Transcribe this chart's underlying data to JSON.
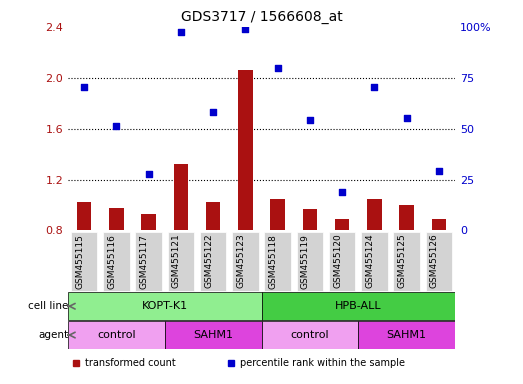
{
  "title": "GDS3717 / 1566608_at",
  "samples": [
    "GSM455115",
    "GSM455116",
    "GSM455117",
    "GSM455121",
    "GSM455122",
    "GSM455123",
    "GSM455118",
    "GSM455119",
    "GSM455120",
    "GSM455124",
    "GSM455125",
    "GSM455126"
  ],
  "bar_values": [
    1.02,
    0.98,
    0.93,
    1.32,
    1.02,
    2.06,
    1.05,
    0.97,
    0.89,
    1.05,
    1.0,
    0.89
  ],
  "scatter_values": [
    1.93,
    1.62,
    1.24,
    2.36,
    1.73,
    2.38,
    2.08,
    1.67,
    1.1,
    1.93,
    1.68,
    1.27
  ],
  "bar_color": "#aa1111",
  "scatter_color": "#0000cc",
  "ylim_left": [
    0.8,
    2.4
  ],
  "ylim_right": [
    0,
    100
  ],
  "yticks_left": [
    0.8,
    1.2,
    1.6,
    2.0,
    2.4
  ],
  "yticks_right": [
    0,
    25,
    50,
    75,
    100
  ],
  "dotted_lines": [
    1.2,
    1.6,
    2.0
  ],
  "cell_line_groups": [
    {
      "label": "KOPT-K1",
      "start": 0,
      "end": 5,
      "color": "#90ee90"
    },
    {
      "label": "HPB-ALL",
      "start": 6,
      "end": 11,
      "color": "#44cc44"
    }
  ],
  "agent_groups": [
    {
      "label": "control",
      "start": 0,
      "end": 2,
      "color": "#f0a0f0"
    },
    {
      "label": "SAHM1",
      "start": 3,
      "end": 5,
      "color": "#dd44dd"
    },
    {
      "label": "control",
      "start": 6,
      "end": 8,
      "color": "#f0a0f0"
    },
    {
      "label": "SAHM1",
      "start": 9,
      "end": 11,
      "color": "#dd44dd"
    }
  ],
  "bar_width": 0.45,
  "background_color": "#ffffff",
  "tick_bg_color": "#d3d3d3",
  "legend_items": [
    {
      "label": "transformed count",
      "color": "#aa1111"
    },
    {
      "label": "percentile rank within the sample",
      "color": "#0000cc"
    }
  ],
  "cell_line_light": "#90ee90",
  "cell_line_dark": "#44cc44",
  "agent_light": "#f0a0f0",
  "agent_dark": "#dd44dd"
}
